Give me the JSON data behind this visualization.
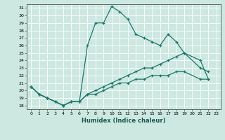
{
  "xlabel": "Humidex (Indice chaleur)",
  "bg_color": "#cce8e0",
  "grid_color": "#ffffff",
  "line_color": "#1a7a6e",
  "xlim": [
    -0.5,
    23.5
  ],
  "ylim": [
    17.5,
    31.5
  ],
  "xticks": [
    0,
    1,
    2,
    3,
    4,
    5,
    6,
    7,
    8,
    9,
    10,
    11,
    12,
    13,
    14,
    15,
    16,
    17,
    18,
    19,
    20,
    21,
    22,
    23
  ],
  "yticks": [
    18,
    19,
    20,
    21,
    22,
    23,
    24,
    25,
    26,
    27,
    28,
    29,
    30,
    31
  ],
  "s1_x": [
    0,
    1,
    2,
    3,
    4,
    5,
    6,
    7,
    8,
    9,
    10,
    11,
    12,
    13,
    14,
    15,
    16,
    17,
    18,
    19,
    21,
    22
  ],
  "s1_y": [
    20.5,
    19.5,
    19.0,
    18.5,
    18.0,
    18.5,
    18.5,
    26.0,
    29.0,
    29.0,
    31.2,
    30.5,
    29.5,
    27.5,
    27.0,
    26.5,
    26.0,
    27.5,
    26.5,
    25.0,
    23.0,
    22.5
  ],
  "s2_x": [
    0,
    1,
    2,
    3,
    4,
    5,
    6,
    7,
    8,
    9,
    10,
    11,
    12,
    13,
    14,
    15,
    16,
    17,
    18,
    19,
    21,
    22
  ],
  "s2_y": [
    20.5,
    19.5,
    19.0,
    18.5,
    18.0,
    18.5,
    18.5,
    19.5,
    19.5,
    20.0,
    20.5,
    21.0,
    21.0,
    21.5,
    21.5,
    22.0,
    22.0,
    22.0,
    22.5,
    22.5,
    21.5,
    21.5
  ],
  "s3_x": [
    0,
    1,
    2,
    3,
    4,
    5,
    6,
    7,
    8,
    9,
    10,
    11,
    12,
    13,
    14,
    15,
    16,
    17,
    18,
    19,
    21,
    22
  ],
  "s3_y": [
    20.5,
    19.5,
    19.0,
    18.5,
    18.0,
    18.5,
    18.5,
    19.5,
    20.0,
    20.5,
    21.0,
    21.5,
    22.0,
    22.5,
    23.0,
    23.0,
    23.5,
    24.0,
    24.5,
    25.0,
    24.0,
    21.5
  ]
}
